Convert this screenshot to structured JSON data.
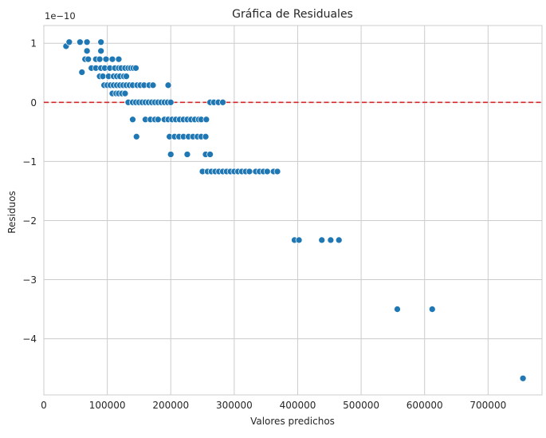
{
  "chart_data": {
    "type": "scatter",
    "title": "Gráfica de Residuales",
    "xlabel": "Valores predichos",
    "ylabel": "Residuos",
    "offset_label": "1e−10",
    "xlim": [
      0,
      785000
    ],
    "ylim": [
      -4.95,
      1.3
    ],
    "x_ticks": [
      0,
      100000,
      200000,
      300000,
      400000,
      500000,
      600000,
      700000
    ],
    "x_tick_labels": [
      "0",
      "100000",
      "200000",
      "300000",
      "400000",
      "500000",
      "600000",
      "700000"
    ],
    "y_ticks": [
      1,
      0,
      -1,
      -2,
      -3,
      -4
    ],
    "y_tick_labels": [
      "1",
      "0",
      "−1",
      "−2",
      "−3",
      "−4"
    ],
    "y_scale_factor": 1e-10,
    "grid": true,
    "reference_line": {
      "y": 0,
      "style": "dashed",
      "color": "#d62728"
    },
    "colors": {
      "points": "#1f77b4",
      "reference_line": "#d62728",
      "grid": "#cccccc",
      "axes_edge": "#cccccc"
    },
    "points": [
      {
        "x": 35000,
        "y": 0.95
      },
      {
        "x": 40000,
        "y": 1.02
      },
      {
        "x": 57000,
        "y": 1.02
      },
      {
        "x": 68000,
        "y": 1.02
      },
      {
        "x": 90000,
        "y": 1.02
      },
      {
        "x": 60000,
        "y": 0.51
      },
      {
        "x": 68000,
        "y": 0.87
      },
      {
        "x": 90000,
        "y": 0.87
      },
      {
        "x": 65000,
        "y": 0.73
      },
      {
        "x": 70000,
        "y": 0.73
      },
      {
        "x": 82000,
        "y": 0.73
      },
      {
        "x": 88000,
        "y": 0.73
      },
      {
        "x": 98000,
        "y": 0.73
      },
      {
        "x": 108000,
        "y": 0.73
      },
      {
        "x": 118000,
        "y": 0.73
      },
      {
        "x": 75000,
        "y": 0.58
      },
      {
        "x": 82000,
        "y": 0.58
      },
      {
        "x": 90000,
        "y": 0.58
      },
      {
        "x": 96000,
        "y": 0.58
      },
      {
        "x": 104000,
        "y": 0.58
      },
      {
        "x": 112000,
        "y": 0.58
      },
      {
        "x": 118000,
        "y": 0.58
      },
      {
        "x": 122000,
        "y": 0.58
      },
      {
        "x": 128000,
        "y": 0.58
      },
      {
        "x": 133000,
        "y": 0.58
      },
      {
        "x": 137000,
        "y": 0.58
      },
      {
        "x": 141000,
        "y": 0.58
      },
      {
        "x": 145000,
        "y": 0.58
      },
      {
        "x": 88000,
        "y": 0.44
      },
      {
        "x": 93000,
        "y": 0.44
      },
      {
        "x": 102000,
        "y": 0.44
      },
      {
        "x": 110000,
        "y": 0.44
      },
      {
        "x": 115000,
        "y": 0.44
      },
      {
        "x": 120000,
        "y": 0.44
      },
      {
        "x": 126000,
        "y": 0.44
      },
      {
        "x": 130000,
        "y": 0.44
      },
      {
        "x": 95000,
        "y": 0.29
      },
      {
        "x": 100000,
        "y": 0.29
      },
      {
        "x": 105000,
        "y": 0.29
      },
      {
        "x": 110000,
        "y": 0.29
      },
      {
        "x": 115000,
        "y": 0.29
      },
      {
        "x": 120000,
        "y": 0.29
      },
      {
        "x": 125000,
        "y": 0.29
      },
      {
        "x": 130000,
        "y": 0.29
      },
      {
        "x": 135000,
        "y": 0.29
      },
      {
        "x": 140000,
        "y": 0.29
      },
      {
        "x": 147000,
        "y": 0.29
      },
      {
        "x": 152000,
        "y": 0.29
      },
      {
        "x": 158000,
        "y": 0.29
      },
      {
        "x": 166000,
        "y": 0.29
      },
      {
        "x": 172000,
        "y": 0.29
      },
      {
        "x": 196000,
        "y": 0.29
      },
      {
        "x": 108000,
        "y": 0.15
      },
      {
        "x": 114000,
        "y": 0.15
      },
      {
        "x": 118000,
        "y": 0.15
      },
      {
        "x": 123000,
        "y": 0.15
      },
      {
        "x": 128000,
        "y": 0.15
      },
      {
        "x": 133000,
        "y": 0.0
      },
      {
        "x": 140000,
        "y": 0.0
      },
      {
        "x": 145000,
        "y": 0.0
      },
      {
        "x": 150000,
        "y": 0.0
      },
      {
        "x": 155000,
        "y": 0.0
      },
      {
        "x": 160000,
        "y": 0.0
      },
      {
        "x": 165000,
        "y": 0.0
      },
      {
        "x": 170000,
        "y": 0.0
      },
      {
        "x": 175000,
        "y": 0.0
      },
      {
        "x": 180000,
        "y": 0.0
      },
      {
        "x": 185000,
        "y": 0.0
      },
      {
        "x": 190000,
        "y": 0.0
      },
      {
        "x": 195000,
        "y": 0.0
      },
      {
        "x": 200000,
        "y": 0.0
      },
      {
        "x": 262000,
        "y": 0.0
      },
      {
        "x": 268000,
        "y": 0.0
      },
      {
        "x": 275000,
        "y": 0.0
      },
      {
        "x": 282000,
        "y": 0.0
      },
      {
        "x": 140000,
        "y": -0.29
      },
      {
        "x": 160000,
        "y": -0.29
      },
      {
        "x": 168000,
        "y": -0.29
      },
      {
        "x": 175000,
        "y": -0.29
      },
      {
        "x": 180000,
        "y": -0.29
      },
      {
        "x": 190000,
        "y": -0.29
      },
      {
        "x": 196000,
        "y": -0.29
      },
      {
        "x": 202000,
        "y": -0.29
      },
      {
        "x": 208000,
        "y": -0.29
      },
      {
        "x": 214000,
        "y": -0.29
      },
      {
        "x": 220000,
        "y": -0.29
      },
      {
        "x": 226000,
        "y": -0.29
      },
      {
        "x": 232000,
        "y": -0.29
      },
      {
        "x": 238000,
        "y": -0.29
      },
      {
        "x": 244000,
        "y": -0.29
      },
      {
        "x": 248000,
        "y": -0.29
      },
      {
        "x": 256000,
        "y": -0.29
      },
      {
        "x": 146000,
        "y": -0.58
      },
      {
        "x": 198000,
        "y": -0.58
      },
      {
        "x": 206000,
        "y": -0.58
      },
      {
        "x": 213000,
        "y": -0.58
      },
      {
        "x": 220000,
        "y": -0.58
      },
      {
        "x": 228000,
        "y": -0.58
      },
      {
        "x": 235000,
        "y": -0.58
      },
      {
        "x": 242000,
        "y": -0.58
      },
      {
        "x": 248000,
        "y": -0.58
      },
      {
        "x": 255000,
        "y": -0.58
      },
      {
        "x": 200000,
        "y": -0.88
      },
      {
        "x": 226000,
        "y": -0.88
      },
      {
        "x": 255000,
        "y": -0.88
      },
      {
        "x": 262000,
        "y": -0.88
      },
      {
        "x": 250000,
        "y": -1.17
      },
      {
        "x": 258000,
        "y": -1.17
      },
      {
        "x": 264000,
        "y": -1.17
      },
      {
        "x": 270000,
        "y": -1.17
      },
      {
        "x": 276000,
        "y": -1.17
      },
      {
        "x": 282000,
        "y": -1.17
      },
      {
        "x": 288000,
        "y": -1.17
      },
      {
        "x": 294000,
        "y": -1.17
      },
      {
        "x": 300000,
        "y": -1.17
      },
      {
        "x": 306000,
        "y": -1.17
      },
      {
        "x": 312000,
        "y": -1.17
      },
      {
        "x": 318000,
        "y": -1.17
      },
      {
        "x": 324000,
        "y": -1.17
      },
      {
        "x": 334000,
        "y": -1.17
      },
      {
        "x": 340000,
        "y": -1.17
      },
      {
        "x": 346000,
        "y": -1.17
      },
      {
        "x": 352000,
        "y": -1.17
      },
      {
        "x": 362000,
        "y": -1.17
      },
      {
        "x": 368000,
        "y": -1.17
      },
      {
        "x": 395000,
        "y": -2.33
      },
      {
        "x": 402000,
        "y": -2.33
      },
      {
        "x": 438000,
        "y": -2.33
      },
      {
        "x": 452000,
        "y": -2.33
      },
      {
        "x": 465000,
        "y": -2.33
      },
      {
        "x": 557000,
        "y": -3.5
      },
      {
        "x": 612000,
        "y": -3.5
      },
      {
        "x": 755000,
        "y": -4.67
      }
    ]
  }
}
